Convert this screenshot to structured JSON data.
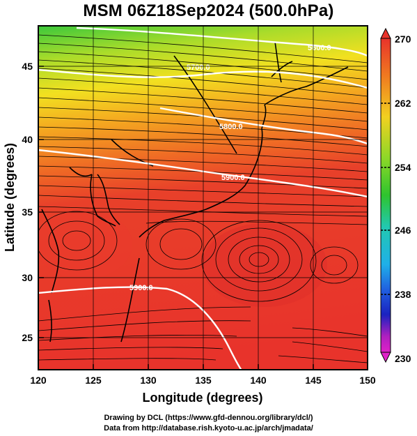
{
  "title": "MSM 06Z18Sep2024 (500.0hPa)",
  "axes": {
    "xlabel": "Longitude (degrees)",
    "ylabel": "Latitude  (degrees)",
    "x_ticks": [
      "120",
      "125",
      "130",
      "135",
      "140",
      "145",
      "150"
    ],
    "y_ticks": [
      "25",
      "30",
      "35",
      "40",
      "45"
    ]
  },
  "colorbar": {
    "labels": [
      "270",
      "262",
      "254",
      "246",
      "238",
      "230"
    ]
  },
  "contours": [
    {
      "label": "5600.0"
    },
    {
      "label": "5700.0"
    },
    {
      "label": "5800.0"
    },
    {
      "label": "5900.0"
    },
    {
      "label": "5900.0"
    }
  ],
  "credits": {
    "line1": "Drawing by DCL (https://www.gfd-dennou.org/library/dcl/)",
    "line2": "Data from http://database.rish.kyoto-u.ac.jp/arch/jmadata/"
  },
  "colors": {
    "warm": "#e8332b",
    "mid": "#f0a020",
    "cool": "#2ec42e",
    "contour": "#ffffff"
  }
}
